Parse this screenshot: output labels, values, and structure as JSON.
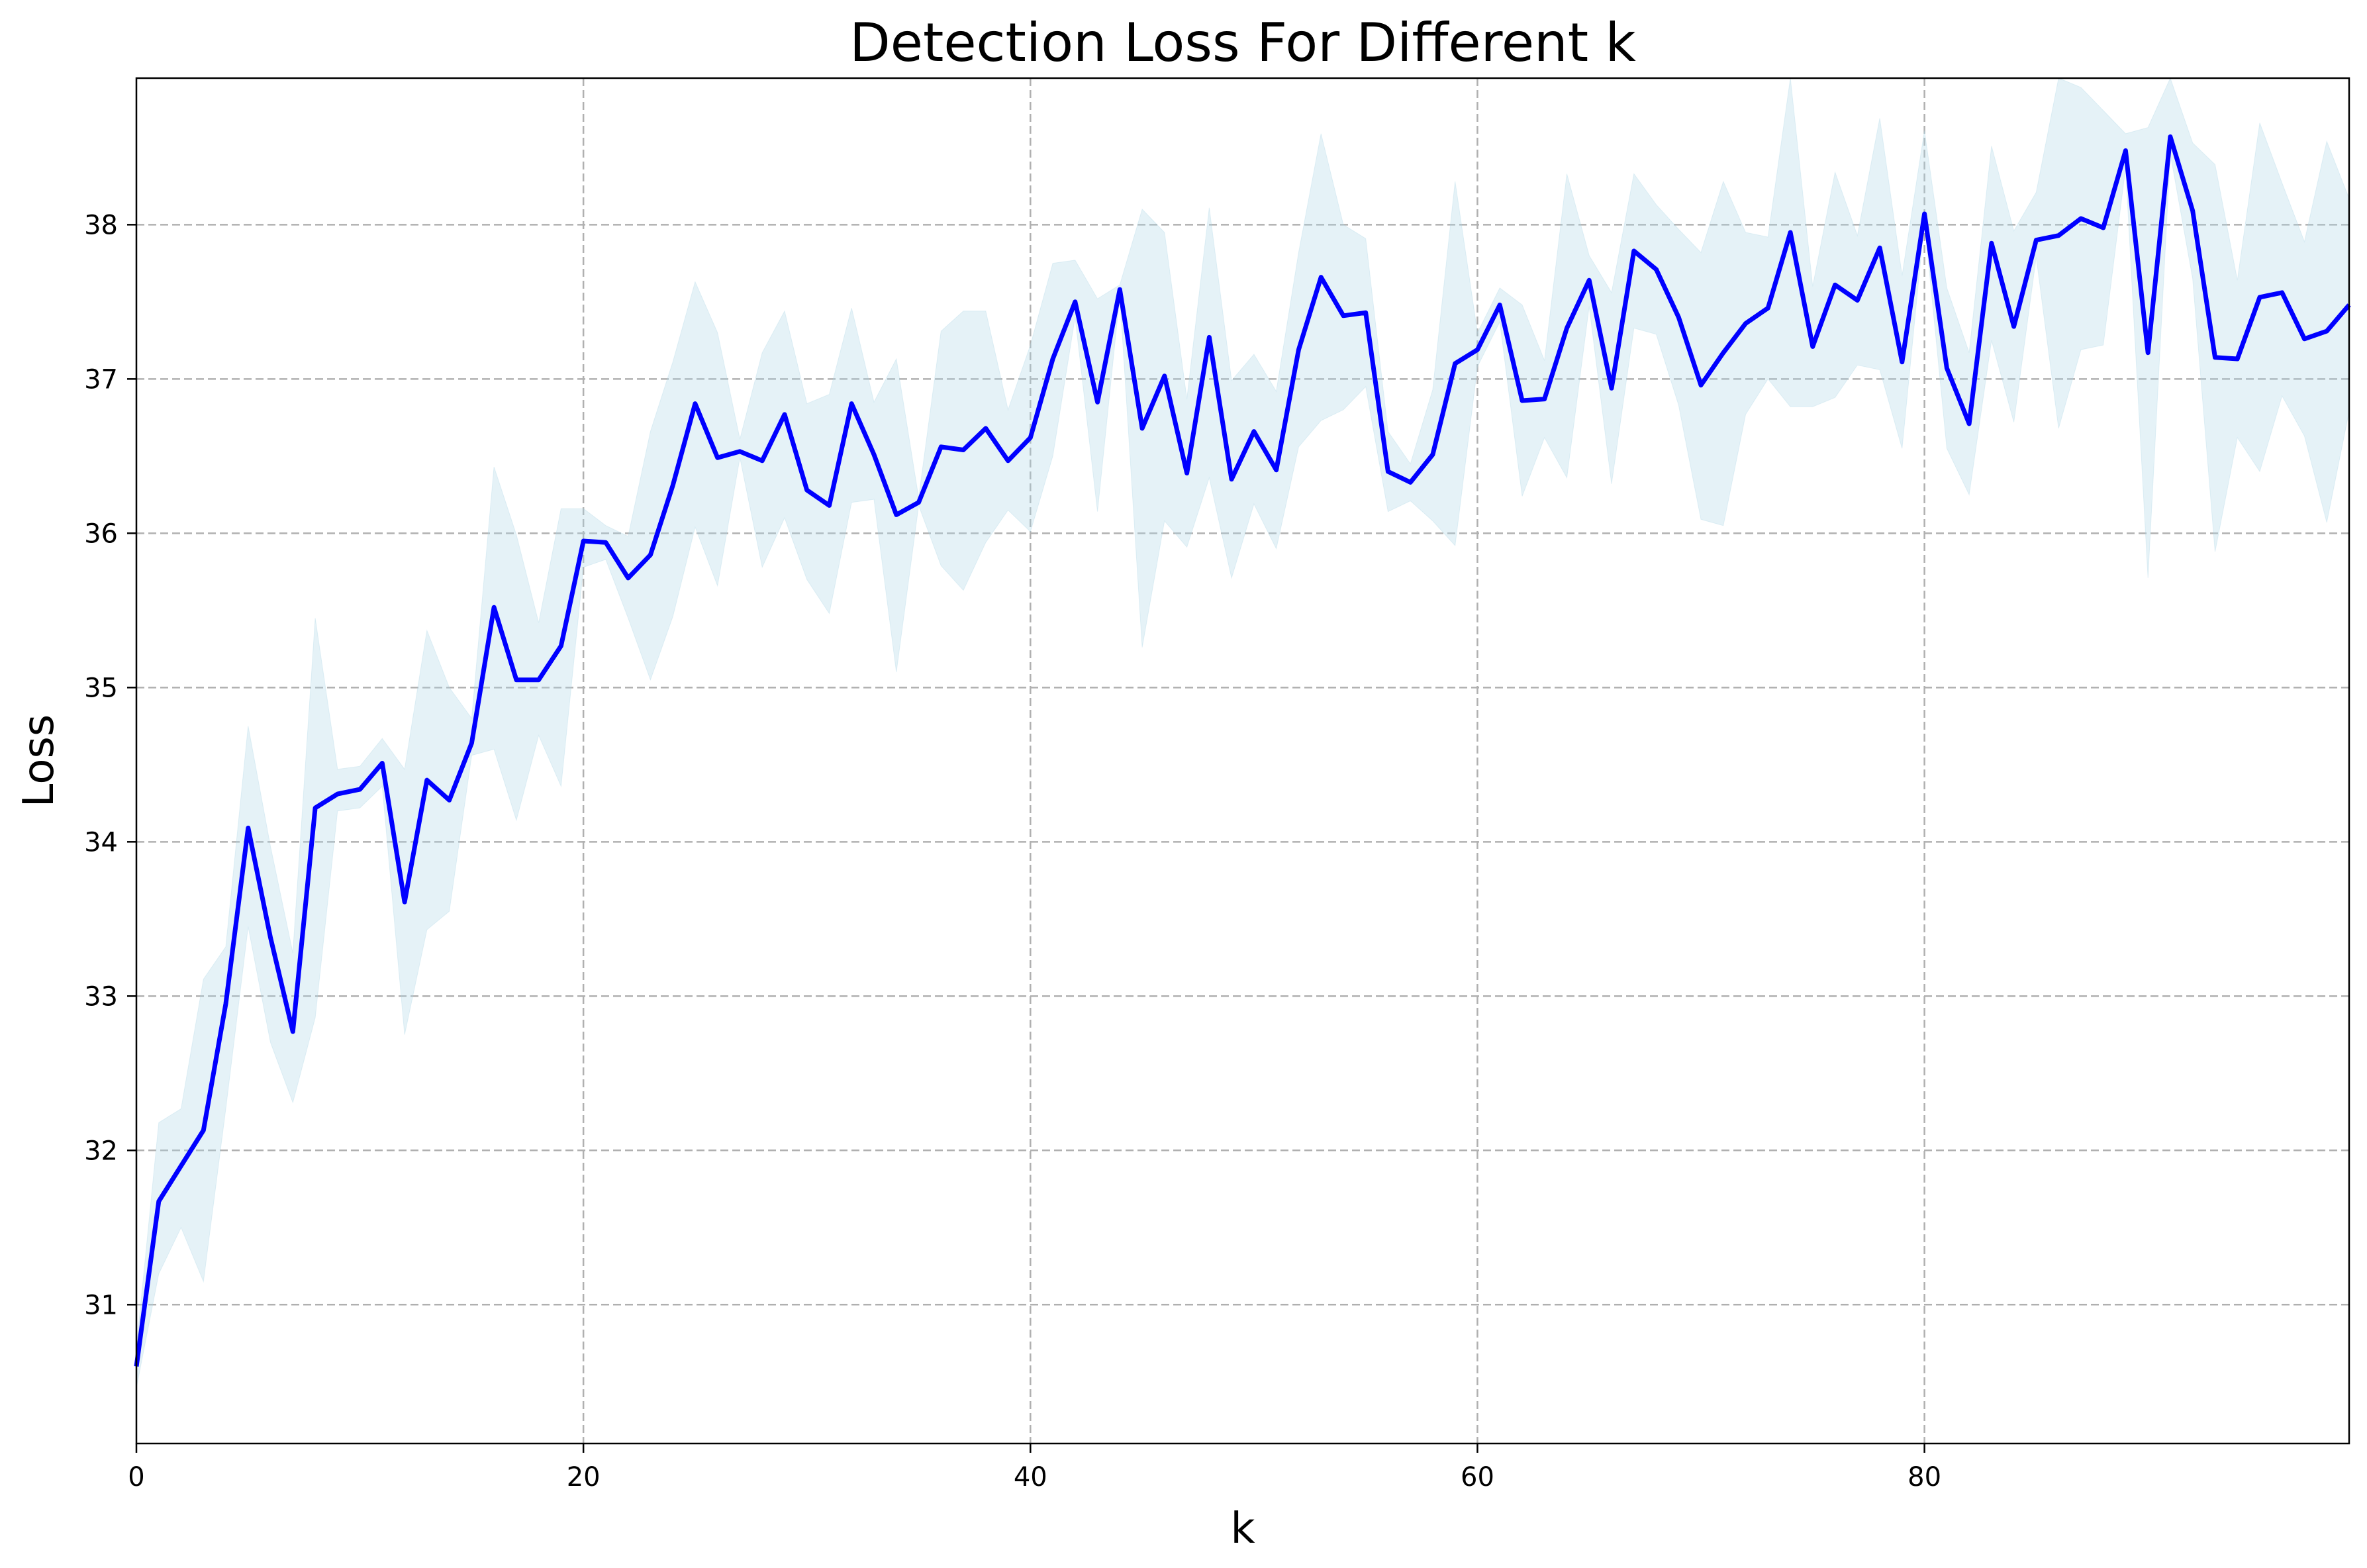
{
  "chart_data": {
    "type": "line",
    "title": "Detection Loss For Different k",
    "xlabel": "k",
    "ylabel": "Loss",
    "xlim": [
      0,
      99
    ],
    "ylim": [
      30.1,
      38.95
    ],
    "grid": true,
    "x_ticks": [
      0,
      20,
      40,
      60,
      80
    ],
    "y_ticks": [
      31,
      32,
      33,
      34,
      35,
      36,
      37,
      38
    ],
    "series": [
      {
        "color": "#0000ff",
        "x": [
          0,
          1,
          2,
          3,
          4,
          5,
          6,
          7,
          8,
          9,
          10,
          11,
          12,
          13,
          14,
          15,
          16,
          17,
          18,
          19,
          20,
          21,
          22,
          23,
          24,
          25,
          26,
          27,
          28,
          29,
          30,
          31,
          32,
          33,
          34,
          35,
          36,
          37,
          38,
          39,
          40,
          41,
          42,
          43,
          44,
          45,
          46,
          47,
          48,
          49,
          50,
          51,
          52,
          53,
          54,
          55,
          56,
          57,
          58,
          59,
          60,
          61,
          62,
          63,
          64,
          65,
          66,
          67,
          68,
          69,
          70,
          71,
          72,
          73,
          74,
          75,
          76,
          77,
          78,
          79,
          80,
          81,
          82,
          83,
          84,
          85,
          86,
          87,
          88,
          89,
          90,
          91,
          92,
          93,
          94,
          95,
          96,
          97,
          98,
          99
        ],
        "values": [
          30.6,
          31.67,
          31.9,
          32.13,
          32.95,
          34.09,
          33.38,
          32.77,
          34.22,
          34.31,
          34.34,
          34.51,
          33.61,
          34.4,
          34.27,
          34.64,
          35.52,
          35.05,
          35.05,
          35.27,
          35.95,
          35.94,
          35.71,
          35.86,
          36.31,
          36.84,
          36.49,
          36.53,
          36.47,
          36.77,
          36.28,
          36.18,
          36.84,
          36.51,
          36.12,
          36.2,
          36.56,
          36.54,
          36.68,
          36.47,
          36.62,
          37.13,
          37.5,
          36.85,
          37.58,
          36.68,
          37.02,
          36.39,
          37.27,
          36.35,
          36.66,
          36.41,
          37.19,
          37.66,
          37.41,
          37.43,
          36.4,
          36.33,
          36.51,
          37.1,
          37.19,
          37.48,
          36.86,
          36.87,
          37.33,
          37.64,
          36.94,
          37.83,
          37.71,
          37.4,
          36.96,
          37.17,
          37.36,
          37.46,
          37.95,
          37.21,
          37.61,
          37.51,
          37.85,
          37.11,
          38.07,
          37.07,
          36.71,
          37.88,
          37.34,
          37.9,
          37.93,
          38.04,
          37.98,
          38.48,
          37.17,
          38.57,
          38.09,
          37.14,
          37.13,
          37.53,
          37.56,
          37.26,
          37.31,
          37.48
        ],
        "lower": [
          30.46,
          31.2,
          31.5,
          31.15,
          32.27,
          33.45,
          32.7,
          32.31,
          32.86,
          34.2,
          34.22,
          34.36,
          32.75,
          33.43,
          33.55,
          34.56,
          34.6,
          34.14,
          34.69,
          34.36,
          35.78,
          35.83,
          35.45,
          35.05,
          35.46,
          36.04,
          35.66,
          36.49,
          35.78,
          36.1,
          35.7,
          35.48,
          36.2,
          36.22,
          35.1,
          36.18,
          35.79,
          35.63,
          35.94,
          36.15,
          36.01,
          36.5,
          37.4,
          36.14,
          37.54,
          35.26,
          36.08,
          35.91,
          36.36,
          35.71,
          36.19,
          35.9,
          36.56,
          36.73,
          36.8,
          36.95,
          36.14,
          36.21,
          36.08,
          35.92,
          37.08,
          37.37,
          36.24,
          36.62,
          36.36,
          37.47,
          36.32,
          37.33,
          37.29,
          36.83,
          36.09,
          36.05,
          36.77,
          37.0,
          36.82,
          36.82,
          36.88,
          37.09,
          37.06,
          36.55,
          38.02,
          36.55,
          36.25,
          37.25,
          36.72,
          37.79,
          36.68,
          37.19,
          37.22,
          38.37,
          35.71,
          38.46,
          37.65,
          35.88,
          36.62,
          36.4,
          36.89,
          36.63,
          36.07,
          36.79
        ],
        "upper": [
          30.72,
          32.18,
          32.27,
          33.11,
          33.32,
          34.75,
          33.97,
          33.28,
          35.45,
          34.47,
          34.49,
          34.67,
          34.47,
          35.37,
          35.0,
          34.8,
          36.43,
          35.99,
          35.42,
          36.16,
          36.16,
          36.05,
          35.98,
          36.66,
          37.11,
          37.63,
          37.3,
          36.61,
          37.17,
          37.44,
          36.84,
          36.9,
          37.46,
          36.85,
          37.13,
          36.23,
          37.31,
          37.44,
          37.44,
          36.8,
          37.22,
          37.75,
          37.77,
          37.52,
          37.61,
          38.1,
          37.95,
          36.87,
          38.11,
          36.99,
          37.16,
          36.92,
          37.82,
          38.59,
          38.0,
          37.91,
          36.66,
          36.45,
          36.93,
          38.28,
          37.3,
          37.59,
          37.48,
          37.12,
          38.33,
          37.8,
          37.56,
          38.33,
          38.13,
          37.97,
          37.82,
          38.28,
          37.95,
          37.92,
          38.95,
          37.6,
          38.34,
          37.93,
          38.69,
          37.67,
          38.61,
          37.59,
          37.17,
          38.51,
          37.96,
          38.21,
          38.95,
          38.89,
          38.74,
          38.59,
          38.63,
          38.95,
          38.53,
          38.39,
          37.64,
          38.66,
          38.27,
          37.89,
          38.54,
          38.17
        ]
      }
    ]
  }
}
